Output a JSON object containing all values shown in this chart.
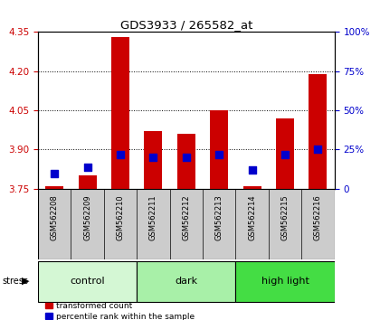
{
  "title": "GDS3933 / 265582_at",
  "samples": [
    "GSM562208",
    "GSM562209",
    "GSM562210",
    "GSM562211",
    "GSM562212",
    "GSM562213",
    "GSM562214",
    "GSM562215",
    "GSM562216"
  ],
  "transformed_count": [
    3.76,
    3.8,
    4.33,
    3.97,
    3.96,
    4.05,
    3.76,
    4.02,
    4.19
  ],
  "percentile_rank": [
    10,
    14,
    22,
    20,
    20,
    22,
    12,
    22,
    25
  ],
  "groups": [
    {
      "label": "control",
      "start": 0,
      "end": 3,
      "color": "#d4f7d4"
    },
    {
      "label": "dark",
      "start": 3,
      "end": 6,
      "color": "#a8f0a8"
    },
    {
      "label": "high light",
      "start": 6,
      "end": 9,
      "color": "#44dd44"
    }
  ],
  "ylim_left": [
    3.75,
    4.35
  ],
  "ylim_right": [
    0,
    100
  ],
  "yticks_left": [
    3.75,
    3.9,
    4.05,
    4.2,
    4.35
  ],
  "yticks_right": [
    0,
    25,
    50,
    75,
    100
  ],
  "bar_color": "#cc0000",
  "dot_color": "#0000cc",
  "bar_width": 0.55,
  "dot_size": 28,
  "plot_bg_color": "#ffffff",
  "left_tick_color": "#cc0000",
  "right_tick_color": "#0000cc",
  "sample_bg_color": "#cccccc"
}
